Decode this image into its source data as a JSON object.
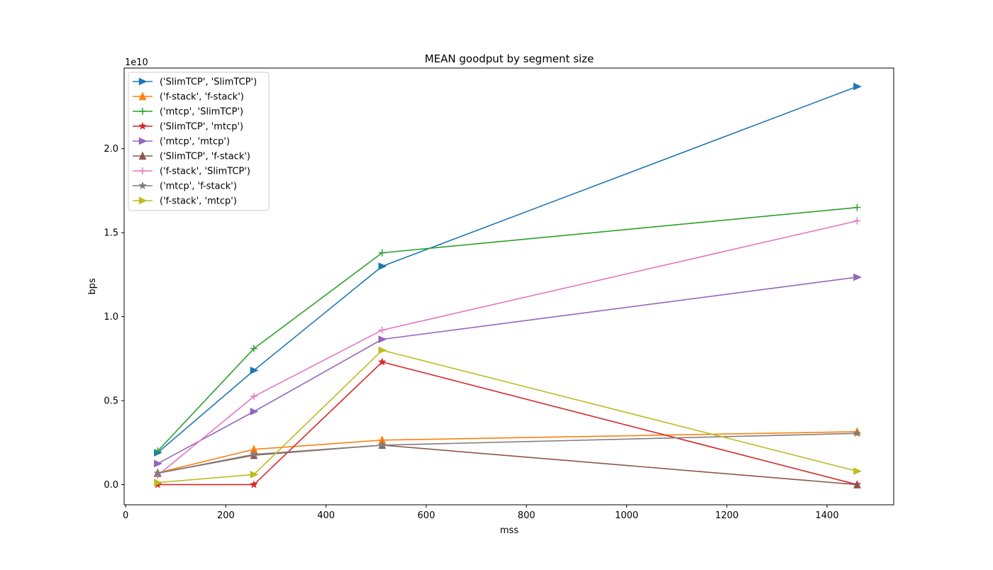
{
  "chart_data": {
    "type": "line",
    "title": "MEAN goodput by segment size",
    "xlabel": "mss",
    "ylabel": "bps",
    "y_offset_text": "1e10",
    "xlim": [
      -3,
      1533
    ],
    "ylim": [
      -0.12,
      2.48
    ],
    "x_ticks": [
      0,
      200,
      400,
      600,
      800,
      1000,
      1200,
      1400
    ],
    "x_tick_labels": [
      "0",
      "200",
      "400",
      "600",
      "800",
      "1000",
      "1200",
      "1400"
    ],
    "y_ticks": [
      0.0,
      0.5,
      1.0,
      1.5,
      2.0
    ],
    "y_tick_labels": [
      "0.0",
      "0.5",
      "1.0",
      "1.5",
      "2.0"
    ],
    "y_scale_note": "values in units of 1e10 bps",
    "grid": false,
    "legend_position": "upper left",
    "x": [
      64,
      256,
      512,
      1460
    ],
    "series": [
      {
        "name": "('SlimTCP', 'SlimTCP')",
        "color": "#1f77b4",
        "marker": "triangle-right",
        "values": [
          0.19,
          0.68,
          1.3,
          2.37
        ]
      },
      {
        "name": "('f-stack', 'f-stack')",
        "color": "#ff7f0e",
        "marker": "triangle-up",
        "values": [
          0.07,
          0.21,
          0.265,
          0.315
        ]
      },
      {
        "name": "('mtcp', 'SlimTCP')",
        "color": "#2ca02c",
        "marker": "plus",
        "values": [
          0.2,
          0.81,
          1.38,
          1.65
        ]
      },
      {
        "name": "('SlimTCP', 'mtcp')",
        "color": "#d62728",
        "marker": "star",
        "values": [
          0.0,
          0.0,
          0.73,
          0.0
        ]
      },
      {
        "name": "('mtcp', 'mtcp')",
        "color": "#9467bd",
        "marker": "triangle-right",
        "values": [
          0.125,
          0.435,
          0.865,
          1.235
        ]
      },
      {
        "name": "('SlimTCP', 'f-stack')",
        "color": "#8c564b",
        "marker": "triangle-up",
        "values": [
          0.068,
          0.175,
          0.235,
          0.0
        ]
      },
      {
        "name": "('f-stack', 'SlimTCP')",
        "color": "#e377c2",
        "marker": "plus",
        "values": [
          0.055,
          0.525,
          0.92,
          1.57
        ]
      },
      {
        "name": "('mtcp', 'f-stack')",
        "color": "#7f7f7f",
        "marker": "star",
        "values": [
          0.068,
          0.18,
          0.235,
          0.305
        ]
      },
      {
        "name": "('f-stack', 'mtcp')",
        "color": "#bcbd22",
        "marker": "triangle-right",
        "values": [
          0.012,
          0.06,
          0.8,
          0.08
        ]
      }
    ]
  }
}
